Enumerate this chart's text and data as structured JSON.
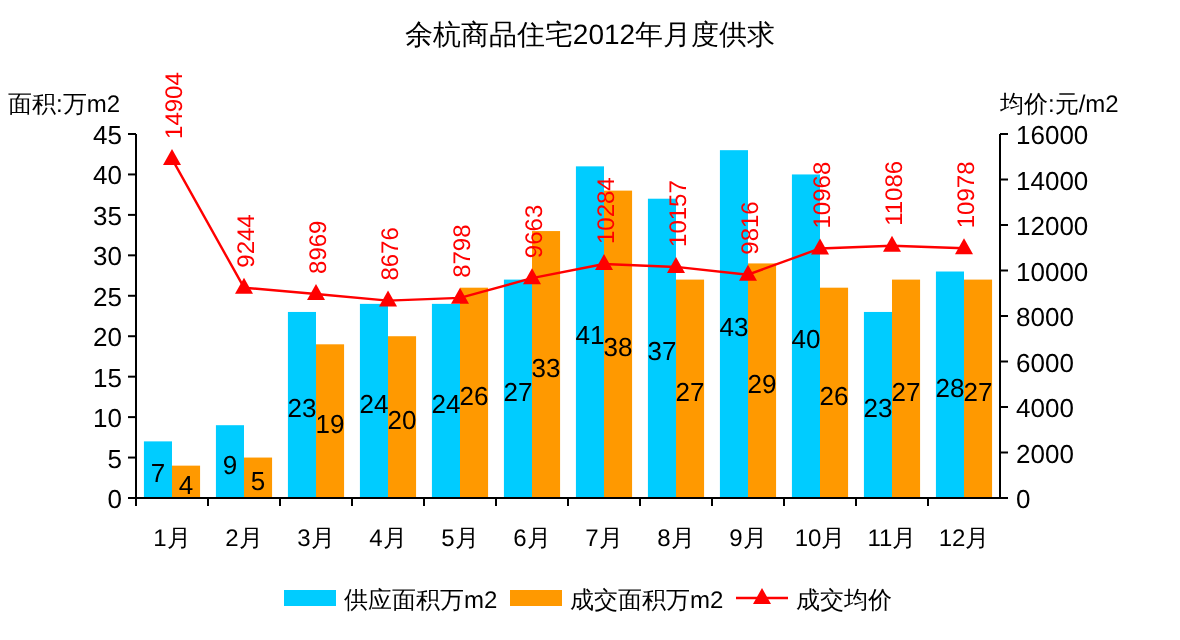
{
  "chart_data": {
    "type": "bar",
    "title": "余杭商品住宅2012年月度供求",
    "ylabel": "面积:万m2",
    "y2label": "均价:元/m2",
    "categories": [
      "1月",
      "2月",
      "3月",
      "4月",
      "5月",
      "6月",
      "7月",
      "8月",
      "9月",
      "10月",
      "11月",
      "12月"
    ],
    "series": [
      {
        "name": "供应面积万m2",
        "color": "#00ccff",
        "values": [
          7,
          9,
          23,
          24,
          24,
          27,
          41,
          37,
          43,
          40,
          23,
          28
        ]
      },
      {
        "name": "成交面积万m2",
        "color": "#ff9900",
        "values": [
          4,
          5,
          19,
          20,
          26,
          33,
          38,
          27,
          29,
          26,
          27,
          27
        ]
      },
      {
        "name": "成交均价",
        "type": "line",
        "axis": "y2",
        "color": "#ff0000",
        "marker": "triangle",
        "values": [
          14904,
          9244,
          8969,
          8676,
          8798,
          9663,
          10284,
          10157,
          9816,
          10968,
          11086,
          10978
        ]
      }
    ],
    "ylim": [
      0,
      45
    ],
    "yticks": [
      0,
      5,
      10,
      15,
      20,
      25,
      30,
      35,
      40,
      45
    ],
    "y2lim": [
      0,
      16000
    ],
    "y2ticks": [
      0,
      2000,
      4000,
      6000,
      8000,
      10000,
      12000,
      14000,
      16000
    ],
    "data_labels": true,
    "legend": "bottom",
    "grid": false
  }
}
